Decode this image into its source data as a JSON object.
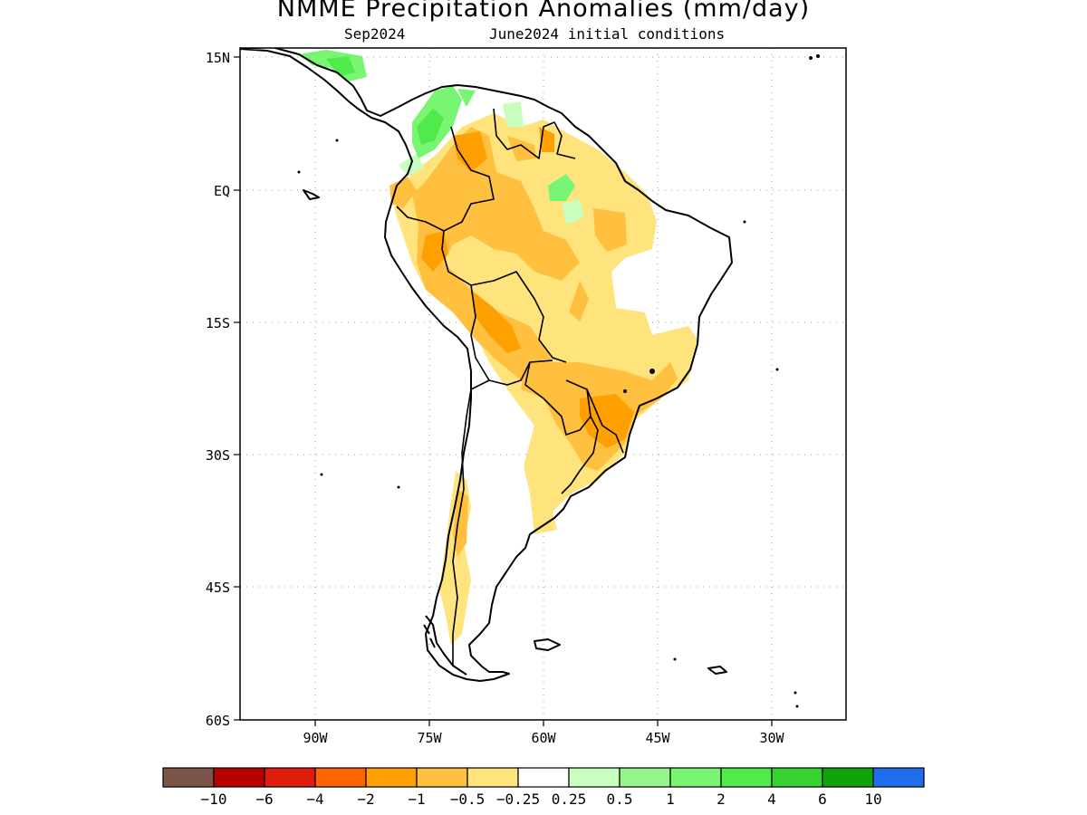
{
  "title": "NMME Precipitation Anomalies (mm/day)",
  "subtitle_left": "Sep2024",
  "subtitle_right": "June2024 initial conditions",
  "lat_labels": [
    "15N",
    "EQ",
    "15S",
    "30S",
    "45S",
    "60S"
  ],
  "lon_labels": [
    "90W",
    "75W",
    "60W",
    "45W",
    "30W"
  ],
  "colorbar": {
    "colors": [
      "#7b5548",
      "#b80000",
      "#e01c0c",
      "#ff6400",
      "#ffa000",
      "#ffbf3f",
      "#ffe37d",
      "#ffffff",
      "#c8ffbe",
      "#96f58c",
      "#78f573",
      "#50eb4b",
      "#37d232",
      "#0ea30b",
      "#1e6eeb"
    ],
    "labels": [
      "-10",
      "-6",
      "-4",
      "-2",
      "-1",
      "-0.5",
      "-0.25",
      "0.25",
      "0.5",
      "1",
      "2",
      "4",
      "6",
      "10"
    ]
  },
  "legend_colors": {
    "dry_light": "#ffe37d",
    "dry_mid": "#ffbf3f",
    "dry_strong": "#ffa000",
    "wet_light": "#c8ffbe",
    "wet_mid": "#78f573",
    "wet_strong": "#50eb4b"
  }
}
